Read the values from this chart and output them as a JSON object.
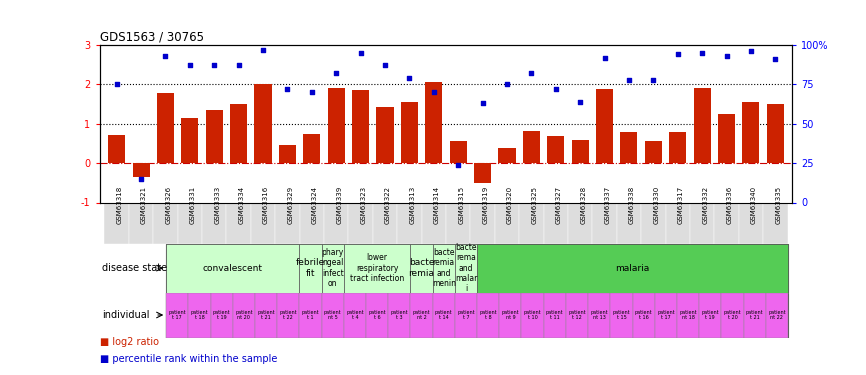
{
  "title": "GDS1563 / 30765",
  "samples": [
    "GSM63318",
    "GSM63321",
    "GSM63326",
    "GSM63331",
    "GSM63333",
    "GSM63334",
    "GSM63316",
    "GSM63329",
    "GSM63324",
    "GSM63339",
    "GSM63323",
    "GSM63322",
    "GSM63313",
    "GSM63314",
    "GSM63315",
    "GSM63319",
    "GSM63320",
    "GSM63325",
    "GSM63327",
    "GSM63328",
    "GSM63337",
    "GSM63338",
    "GSM63330",
    "GSM63317",
    "GSM63332",
    "GSM63336",
    "GSM63340",
    "GSM63335"
  ],
  "log2_ratio": [
    0.72,
    -0.35,
    1.78,
    1.15,
    1.35,
    1.5,
    2.02,
    0.45,
    0.75,
    1.92,
    1.85,
    1.42,
    1.55,
    2.05,
    0.55,
    -0.5,
    0.38,
    0.82,
    0.68,
    0.6,
    1.88,
    0.8,
    0.55,
    0.8,
    1.92,
    1.25,
    1.55,
    1.5
  ],
  "percentile_rank_pct": [
    75,
    15,
    93,
    87,
    87,
    87,
    97,
    72,
    70,
    82,
    95,
    87,
    79,
    70,
    24,
    63,
    75,
    82,
    72,
    64,
    92,
    78,
    78,
    94,
    95,
    93,
    96,
    91
  ],
  "bar_color": "#cc2200",
  "dot_color": "#0000cc",
  "disease_groups": [
    {
      "label": "convalescent",
      "start": 0,
      "end": 5,
      "color": "#ccffcc"
    },
    {
      "label": "febrile\nfit",
      "start": 6,
      "end": 6,
      "color": "#ccffcc"
    },
    {
      "label": "phary\nngeal\ninfect\non",
      "start": 7,
      "end": 7,
      "color": "#ccffcc"
    },
    {
      "label": "lower\nrespiratory\ntract infection",
      "start": 8,
      "end": 10,
      "color": "#ccffcc"
    },
    {
      "label": "bacte\nremia",
      "start": 11,
      "end": 11,
      "color": "#ccffcc"
    },
    {
      "label": "bacte\nremia\nand\nmenin",
      "start": 12,
      "end": 12,
      "color": "#ccffcc"
    },
    {
      "label": "bacte\nrema\nand\nmalar\ni",
      "start": 13,
      "end": 13,
      "color": "#ccffcc"
    },
    {
      "label": "malaria",
      "start": 14,
      "end": 27,
      "color": "#55cc55"
    }
  ],
  "individual_labels": [
    "patient\nt 17",
    "patient\nt 18",
    "patient\nt 19",
    "patient\nnt 20",
    "patient\nt 21",
    "patient\nt 22",
    "patient\nt 1",
    "patient\nnt 5",
    "patient\nt 4",
    "patient\nt 6",
    "patient\nt 3",
    "patient\nnt 2",
    "patient\nt 14",
    "patient\nt 7",
    "patient\nt 8",
    "patient\nnt 9",
    "patient\nt 10",
    "patient\nt 11",
    "patient\nt 12",
    "patient\nnt 13",
    "patient\nt 15",
    "patient\nt 16",
    "patient\nt 17",
    "patient\nnt 18",
    "patient\nt 19",
    "patient\nt 20",
    "patient\nt 21",
    "patient\nnt 22"
  ],
  "ylim_left": [
    -1,
    3
  ],
  "ylim_right": [
    0,
    100
  ],
  "yticks_left": [
    -1,
    0,
    1,
    2,
    3
  ],
  "yticks_right": [
    0,
    25,
    50,
    75,
    100
  ],
  "indiv_color": "#ee66ee",
  "bg_color": "#ffffff",
  "xtick_bg_color": "#dddddd"
}
